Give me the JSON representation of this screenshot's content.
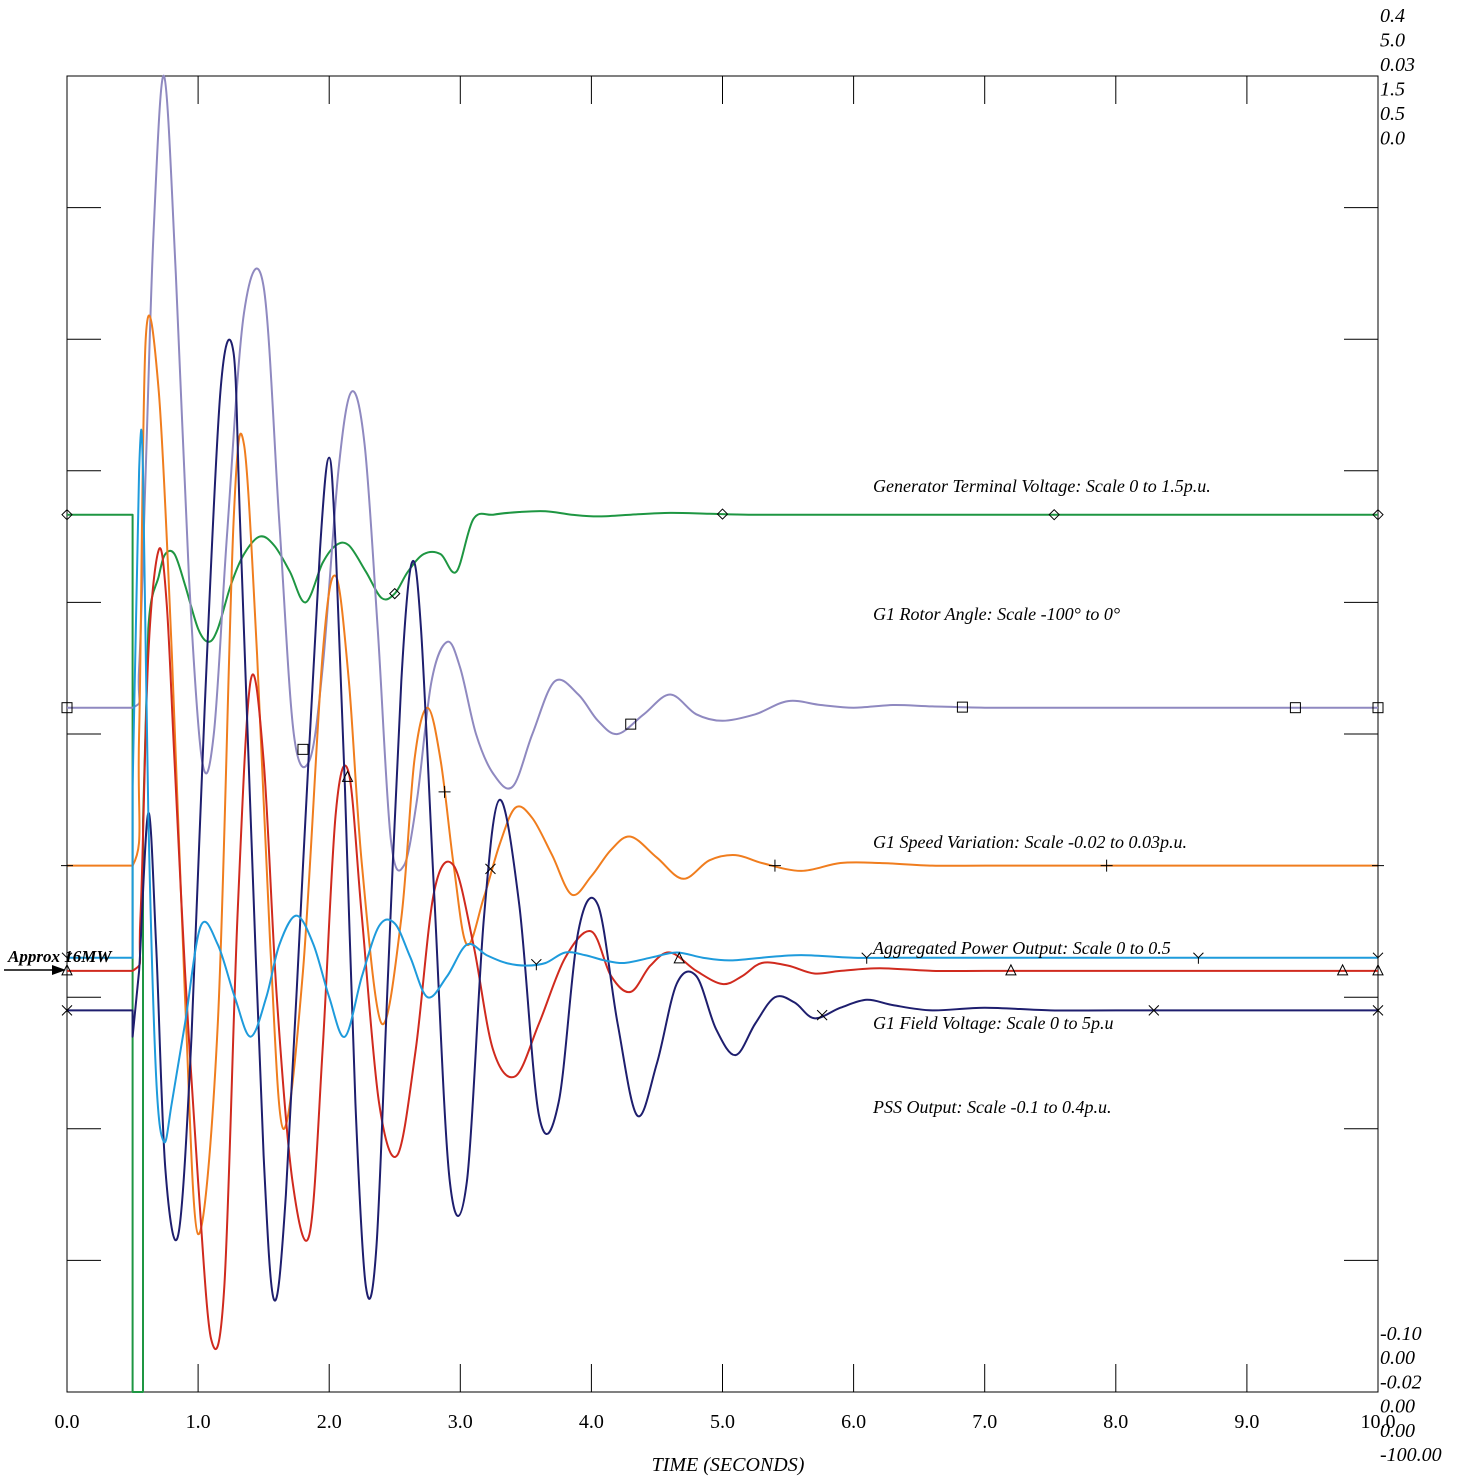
{
  "chart_data": {
    "type": "line",
    "xlabel": "TIME (SECONDS)",
    "xlim": [
      0,
      10
    ],
    "x_ticks": [
      "0.0",
      "1.0",
      "2.0",
      "3.0",
      "4.0",
      "5.0",
      "6.0",
      "7.0",
      "8.0",
      "9.0",
      "10.0"
    ],
    "right_axis_top_labels": [
      "0.4",
      "5.0",
      "0.03",
      "1.5",
      "0.5",
      "0.0"
    ],
    "right_axis_bottom_labels": [
      "-0.10",
      "0.00",
      "-0.02",
      "0.00",
      "0.00",
      "-100.00"
    ],
    "approx_label": "Approx 16MW",
    "series": [
      {
        "name": "Generator Terminal Voltage",
        "label": "Generator Terminal Voltage:  Scale 0 to 1.5p.u.",
        "color": "#1e9642",
        "marker": "diamond",
        "ylim": [
          0,
          1.5
        ],
        "x": [
          0,
          0.5,
          0.5,
          0.58,
          0.58,
          0.62,
          0.7,
          0.75,
          0.82,
          0.9,
          1.0,
          1.08,
          1.15,
          1.25,
          1.35,
          1.47,
          1.58,
          1.7,
          1.82,
          1.95,
          2.05,
          2.15,
          2.28,
          2.4,
          2.5,
          2.6,
          2.72,
          2.85,
          2.97,
          3.1,
          3.25,
          3.45,
          3.65,
          3.85,
          4.05,
          4.3,
          4.6,
          4.9,
          5.2,
          5.6,
          6.0,
          7.0,
          8.0,
          9.0,
          10.0
        ],
        "y": [
          1.0,
          1.0,
          0,
          0,
          0.65,
          0.87,
          0.93,
          0.955,
          0.955,
          0.92,
          0.87,
          0.855,
          0.87,
          0.92,
          0.955,
          0.975,
          0.965,
          0.935,
          0.9,
          0.945,
          0.965,
          0.965,
          0.935,
          0.905,
          0.91,
          0.935,
          0.955,
          0.955,
          0.935,
          0.995,
          1.0,
          1.003,
          1.004,
          1.0,
          0.998,
          1.0,
          1.002,
          1.001,
          1.0,
          1.0,
          1.0,
          1.0,
          1.0,
          1.0,
          1.0
        ]
      },
      {
        "name": "G1 Rotor Angle",
        "label": "G1 Rotor Angle:  Scale -100° to 0°",
        "color": "#8f89c0",
        "marker": "square",
        "ylim": [
          -100,
          0
        ],
        "x": [
          0,
          0.5,
          0.55,
          0.6,
          0.66,
          0.74,
          0.83,
          0.93,
          1.03,
          1.12,
          1.22,
          1.35,
          1.5,
          1.62,
          1.73,
          1.85,
          1.95,
          2.07,
          2.17,
          2.27,
          2.37,
          2.47,
          2.57,
          2.67,
          2.78,
          2.9,
          3.0,
          3.12,
          3.25,
          3.4,
          3.55,
          3.72,
          3.9,
          4.05,
          4.2,
          4.4,
          4.6,
          4.8,
          5.0,
          5.25,
          5.5,
          5.75,
          6.0,
          6.3,
          6.6,
          7.0,
          7.5,
          8.0,
          9.0,
          10.0
        ],
        "y": [
          -48,
          -48,
          -45,
          -30,
          -12,
          0,
          -15,
          -38,
          -52,
          -50,
          -35,
          -18,
          -16,
          -34,
          -50,
          -52,
          -45,
          -30,
          -24,
          -28,
          -42,
          -58,
          -60,
          -55,
          -46,
          -43,
          -45,
          -50,
          -53,
          -54,
          -50,
          -46,
          -47,
          -49,
          -50,
          -48.5,
          -47,
          -48.5,
          -49,
          -48.5,
          -47.5,
          -47.8,
          -48,
          -47.8,
          -47.9,
          -48,
          -48,
          -48,
          -48,
          -48
        ]
      },
      {
        "name": "G1 Speed Variation",
        "label": "G1 Speed Variation:  Scale -0.02 to 0.03p.u.",
        "color": "#f07d1e",
        "marker": "plus",
        "ylim": [
          -0.02,
          0.03
        ],
        "x": [
          0,
          0.5,
          0.55,
          0.6,
          0.7,
          0.8,
          0.9,
          1.0,
          1.15,
          1.27,
          1.35,
          1.45,
          1.55,
          1.65,
          1.8,
          1.95,
          2.05,
          2.15,
          2.25,
          2.4,
          2.55,
          2.65,
          2.75,
          2.85,
          2.95,
          3.05,
          3.18,
          3.3,
          3.42,
          3.55,
          3.7,
          3.85,
          4.0,
          4.15,
          4.3,
          4.5,
          4.7,
          4.9,
          5.1,
          5.3,
          5.6,
          5.9,
          6.2,
          6.6,
          7.0,
          8.0,
          9.0,
          10.0
        ],
        "y": [
          0.0,
          0.0,
          0.005,
          0.02,
          0.018,
          0.008,
          -0.005,
          -0.014,
          -0.006,
          0.013,
          0.016,
          0.008,
          -0.003,
          -0.01,
          -0.004,
          0.008,
          0.011,
          0.007,
          0.0,
          -0.006,
          -0.002,
          0.004,
          0.006,
          0.004,
          0.0,
          -0.003,
          -0.0012,
          0.0008,
          0.0022,
          0.0018,
          0.0004,
          -0.0011,
          -0.0004,
          0.0006,
          0.0011,
          0.0003,
          -0.0005,
          0.0002,
          0.0004,
          0.0001,
          -0.0002,
          0.0001,
          0.0001,
          0.0,
          0.0,
          0.0,
          0.0,
          0.0
        ]
      },
      {
        "name": "Aggregated Power Output",
        "label": "Aggregated Power Output:  Scale 0 to 0.5",
        "color": "#d02a1e",
        "marker": "triangle",
        "ylim": [
          0,
          0.5
        ],
        "x": [
          0,
          0.5,
          0.56,
          0.62,
          0.7,
          0.76,
          0.82,
          0.9,
          1.0,
          1.1,
          1.2,
          1.3,
          1.4,
          1.5,
          1.6,
          1.72,
          1.85,
          1.95,
          2.05,
          2.15,
          2.25,
          2.38,
          2.52,
          2.66,
          2.8,
          2.95,
          3.1,
          3.25,
          3.42,
          3.6,
          3.8,
          4.0,
          4.15,
          4.3,
          4.45,
          4.6,
          4.8,
          5.0,
          5.15,
          5.3,
          5.5,
          5.7,
          5.9,
          6.2,
          6.6,
          7.0,
          8.0,
          9.0,
          10.0
        ],
        "y": [
          0.16,
          0.16,
          0.18,
          0.28,
          0.32,
          0.3,
          0.24,
          0.16,
          0.08,
          0.02,
          0.04,
          0.18,
          0.27,
          0.24,
          0.15,
          0.08,
          0.06,
          0.13,
          0.22,
          0.235,
          0.18,
          0.11,
          0.09,
          0.13,
          0.19,
          0.2,
          0.17,
          0.13,
          0.12,
          0.14,
          0.165,
          0.175,
          0.158,
          0.152,
          0.162,
          0.167,
          0.16,
          0.155,
          0.158,
          0.163,
          0.162,
          0.159,
          0.16,
          0.161,
          0.16,
          0.16,
          0.16,
          0.16,
          0.16
        ]
      },
      {
        "name": "G1 Field Voltage",
        "label": "G1 Field Voltage:  Scale 0 to 5p.u",
        "color": "#1e1e6e",
        "marker": "x",
        "ylim": [
          0,
          5
        ],
        "x": [
          0,
          0.5,
          0.5,
          0.55,
          0.62,
          0.68,
          0.75,
          0.85,
          0.95,
          1.05,
          1.17,
          1.27,
          1.32,
          1.4,
          1.5,
          1.58,
          1.67,
          1.8,
          1.93,
          2.0,
          2.05,
          2.12,
          2.2,
          2.28,
          2.36,
          2.45,
          2.55,
          2.63,
          2.7,
          2.8,
          2.92,
          3.05,
          3.18,
          3.3,
          3.45,
          3.6,
          3.75,
          3.9,
          4.05,
          4.2,
          4.35,
          4.5,
          4.65,
          4.8,
          4.95,
          5.1,
          5.25,
          5.4,
          5.55,
          5.7,
          5.9,
          6.1,
          6.3,
          6.6,
          7.0,
          7.5,
          8.0,
          9.0,
          10.0
        ],
        "y": [
          1.45,
          1.45,
          1.35,
          1.6,
          2.2,
          1.7,
          0.85,
          0.6,
          1.35,
          2.6,
          3.8,
          3.95,
          3.3,
          2.2,
          0.9,
          0.35,
          0.75,
          2.0,
          3.2,
          3.55,
          3.2,
          2.3,
          1.1,
          0.4,
          0.55,
          1.6,
          2.7,
          3.15,
          2.9,
          1.9,
          0.8,
          0.8,
          1.8,
          2.25,
          1.85,
          1.05,
          1.1,
          1.75,
          1.85,
          1.4,
          1.05,
          1.25,
          1.55,
          1.58,
          1.38,
          1.28,
          1.4,
          1.5,
          1.48,
          1.42,
          1.46,
          1.49,
          1.47,
          1.45,
          1.46,
          1.45,
          1.45,
          1.45,
          1.45
        ]
      },
      {
        "name": "PSS Output",
        "label": "PSS Output:  Scale -0.1 to 0.4p.u.",
        "color": "#1e9bdc",
        "marker": "tri-down",
        "ylim": [
          -0.1,
          0.4
        ],
        "x": [
          0,
          0.5,
          0.5,
          0.55,
          0.58,
          0.62,
          0.68,
          0.74,
          0.8,
          0.9,
          1.02,
          1.15,
          1.28,
          1.4,
          1.52,
          1.62,
          1.75,
          1.88,
          2.0,
          2.12,
          2.25,
          2.38,
          2.5,
          2.62,
          2.75,
          2.9,
          3.05,
          3.2,
          3.35,
          3.5,
          3.65,
          3.8,
          3.95,
          4.1,
          4.25,
          4.45,
          4.65,
          4.85,
          5.05,
          5.3,
          5.6,
          6.0,
          6.5,
          7.0,
          8.0,
          9.0,
          10.0
        ],
        "y": [
          0.065,
          0.065,
          0.13,
          0.25,
          0.25,
          0.12,
          0.02,
          -0.005,
          0.01,
          0.04,
          0.077,
          0.07,
          0.05,
          0.035,
          0.05,
          0.07,
          0.081,
          0.07,
          0.05,
          0.035,
          0.058,
          0.077,
          0.078,
          0.065,
          0.05,
          0.058,
          0.07,
          0.066,
          0.063,
          0.062,
          0.063,
          0.067,
          0.066,
          0.064,
          0.063,
          0.065,
          0.067,
          0.065,
          0.064,
          0.065,
          0.066,
          0.065,
          0.065,
          0.065,
          0.065,
          0.065,
          0.065
        ]
      }
    ],
    "markers_x": {
      "Generator Terminal Voltage": [
        0,
        2.5,
        5.0,
        7.53,
        10.0
      ],
      "G1 Rotor Angle": [
        0,
        1.8,
        4.3,
        6.83,
        9.37,
        10.0
      ],
      "G1 Speed Variation": [
        0,
        2.88,
        5.4,
        7.93,
        10.0
      ],
      "Aggregated Power Output": [
        0,
        2.14,
        4.67,
        7.2,
        9.73,
        10.0
      ],
      "G1 Field Voltage": [
        0,
        3.23,
        5.76,
        8.29,
        10.0
      ],
      "PSS Output": [
        0,
        3.58,
        6.1,
        8.63,
        10.0
      ]
    }
  }
}
